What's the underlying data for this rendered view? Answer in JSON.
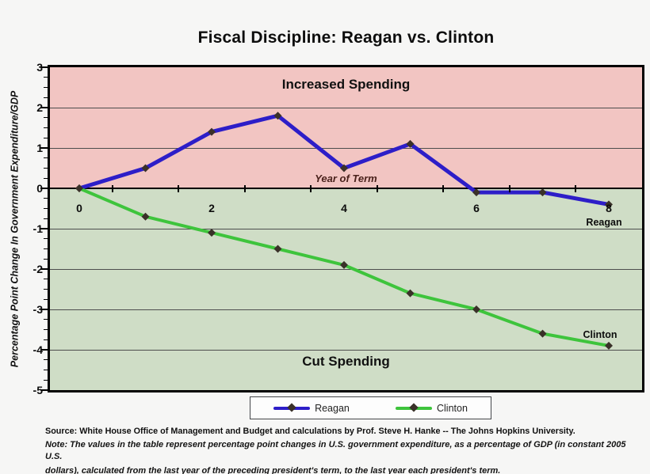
{
  "title": "Fiscal Discipline: Reagan vs. Clinton",
  "chart_data": {
    "type": "line",
    "x": [
      0,
      1,
      2,
      3,
      4,
      5,
      6,
      7,
      8
    ],
    "series": [
      {
        "name": "Reagan",
        "color": "#2d1ec8",
        "values": [
          0,
          0.5,
          1.4,
          1.8,
          0.5,
          1.1,
          -0.1,
          -0.1,
          -0.4
        ]
      },
      {
        "name": "Clinton",
        "color": "#3ec43c",
        "values": [
          0,
          -0.7,
          -1.1,
          -1.5,
          -1.9,
          -2.6,
          -3.0,
          -3.6,
          -3.9
        ]
      }
    ],
    "xlabel": "Year of Term",
    "ylabel": "Percentage Point Change In Government Expenditure/GDP",
    "ylim": [
      -5,
      3
    ],
    "y_ticks": [
      3,
      2,
      1,
      0,
      -1,
      -2,
      -3,
      -4,
      -5
    ],
    "x_tick_values": [
      0,
      2,
      4,
      6,
      8
    ],
    "x_tick_labels": [
      "0",
      "2",
      "4",
      "6",
      "8"
    ],
    "grid": "horizontal-major",
    "legend_position": "bottom-center",
    "region_labels": {
      "above_zero": "Increased Spending",
      "below_zero": "Cut Spending"
    }
  },
  "annotations": {
    "increased_spending": "Increased Spending",
    "cut_spending": "Cut Spending",
    "reagan_label": "Reagan",
    "clinton_label": "Clinton"
  },
  "legend": {
    "items": [
      {
        "label": "Reagan",
        "color": "#2d1ec8"
      },
      {
        "label": "Clinton",
        "color": "#3ec43c"
      }
    ]
  },
  "footer": {
    "source": "Source: White House Office of Management and Budget and calculations by Prof. Steve H. Hanke -- The Johns Hopkins University.",
    "note_line1": "Note: The values in the table represent percentage point changes in U.S. government expenditure, as a percentage of GDP (in constant 2005 U.S.",
    "note_line2": "dollars), calculated from the last year of the preceding president's term, to the last year each president's term."
  },
  "colors": {
    "page_bg": "#f6f6f5",
    "increased_bg": "#f2c5c2",
    "cut_bg": "#cfddc6",
    "marker": "#3a3129",
    "grid": "#4d4d4d",
    "axis": "#000000",
    "xlabel_text": "#4a221c"
  }
}
